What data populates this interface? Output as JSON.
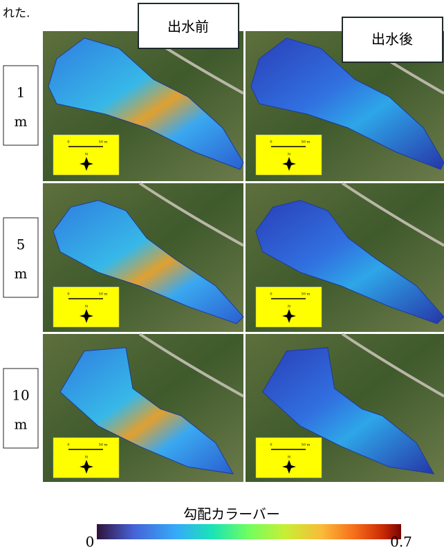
{
  "caption_fragment": "れた.",
  "columns": [
    {
      "label": "出水前"
    },
    {
      "label": "出水後"
    }
  ],
  "rows": [
    {
      "value": "1",
      "unit": "m"
    },
    {
      "value": "5",
      "unit": "m"
    },
    {
      "value": "10",
      "unit": "m"
    }
  ],
  "scale": {
    "zero": "0",
    "length": "50 m",
    "north": "N"
  },
  "colorbar": {
    "title": "勾配カラーバー",
    "min": 0,
    "max": 0.7
  }
}
